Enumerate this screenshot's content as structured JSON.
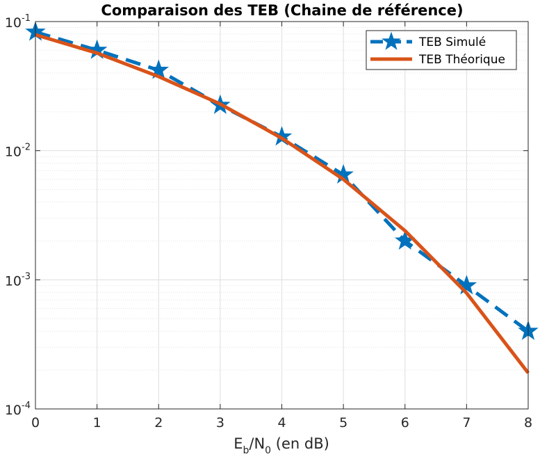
{
  "chart_data": {
    "type": "line",
    "title": "Comparaison des TEB (Chaine de référence)",
    "xlabel": {
      "main": "E",
      "sub1": "b",
      "mid": "/N",
      "sub2": "0",
      "tail": " (en dB)"
    },
    "ylabel": "",
    "x": [
      0,
      1,
      2,
      3,
      4,
      5,
      6,
      7,
      8
    ],
    "xlim": [
      0,
      8
    ],
    "ylim": [
      0.0001,
      0.1
    ],
    "yscale": "log",
    "xticks": [
      "0",
      "1",
      "2",
      "3",
      "4",
      "5",
      "6",
      "7",
      "8"
    ],
    "yticks": [
      {
        "base": "10",
        "exp": "-4",
        "value": 0.0001
      },
      {
        "base": "10",
        "exp": "-3",
        "value": 0.001
      },
      {
        "base": "10",
        "exp": "-2",
        "value": 0.01
      },
      {
        "base": "10",
        "exp": "-1",
        "value": 0.1
      }
    ],
    "grid": true,
    "minor_grid": true,
    "legend_position": "top-right",
    "series": [
      {
        "name": "TEB Simulé",
        "style": "dashed",
        "marker": "star",
        "color": "#0072BD",
        "values": [
          0.083,
          0.06,
          0.042,
          0.0225,
          0.0128,
          0.0065,
          0.002,
          0.0009,
          0.0004
        ]
      },
      {
        "name": "TEB Théorique",
        "style": "solid",
        "marker": "none",
        "color": "#D95319",
        "values": [
          0.079,
          0.057,
          0.0375,
          0.023,
          0.0125,
          0.006,
          0.0024,
          0.00079,
          0.00019
        ]
      }
    ]
  }
}
